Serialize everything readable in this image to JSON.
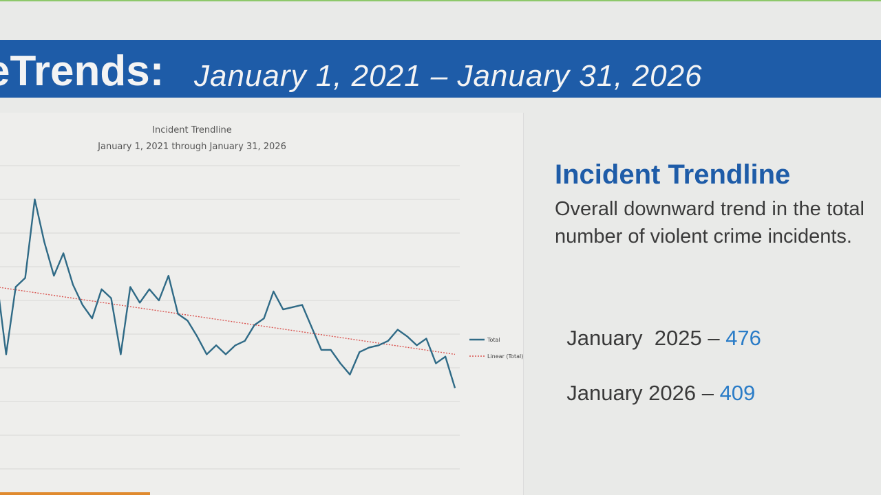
{
  "header": {
    "title_fragment": "eTrends:",
    "date_range": "January 1, 2021 – January 31, 2026"
  },
  "colors": {
    "header_bg": "#1e5ca8",
    "accent_text": "#1e5ca8",
    "stat_value": "#2a7cc7",
    "series_total": "#2f6a86",
    "series_linear": "#d9534f",
    "top_line": "#8dc86a",
    "bottom_accent": "#e08a2e"
  },
  "chart_data": {
    "type": "line",
    "title": "Incident Trendline",
    "subtitle": "January 1, 2021 through January 31, 2026",
    "grid": true,
    "legend_position": "right",
    "y_gridlines": 10,
    "series": [
      {
        "name": "Total",
        "style": "solid",
        "values": [
          390,
          322,
          382,
          390,
          460,
          422,
          392,
          412,
          384,
          366,
          354,
          380,
          372,
          322,
          382,
          368,
          380,
          370,
          392,
          358,
          352,
          338,
          322,
          330,
          322,
          330,
          334,
          348,
          354,
          378,
          362,
          364,
          366,
          346,
          326,
          326,
          314,
          304,
          324,
          328,
          330,
          334,
          344,
          338,
          330,
          336,
          314,
          320,
          292
        ]
      },
      {
        "name": "Linear (Total)",
        "style": "dotted",
        "values": [
          382,
          322
        ]
      }
    ]
  },
  "side_panel": {
    "heading": "Incident Trendline",
    "body": "Overall downward trend in the total number of violent crime incidents.",
    "stats": [
      {
        "label": "January  2025 – ",
        "value": "476"
      },
      {
        "label": "January 2026 – ",
        "value": "409"
      }
    ]
  }
}
